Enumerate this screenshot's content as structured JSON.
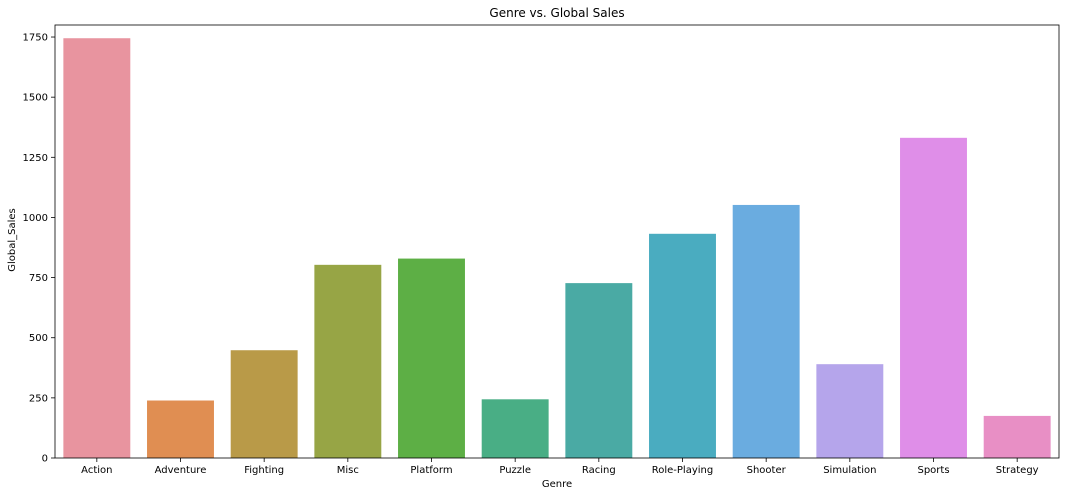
{
  "chart_data": {
    "type": "bar",
    "title": "Genre vs. Global Sales",
    "xlabel": "Genre",
    "ylabel": "Global_Sales",
    "categories": [
      "Action",
      "Adventure",
      "Fighting",
      "Misc",
      "Platform",
      "Puzzle",
      "Racing",
      "Role-Playing",
      "Shooter",
      "Simulation",
      "Sports",
      "Strategy"
    ],
    "values": [
      1745,
      239,
      448,
      803,
      829,
      244,
      727,
      932,
      1052,
      390,
      1331,
      175
    ],
    "colors": [
      "#e8949f",
      "#e08e52",
      "#b99a48",
      "#97a545",
      "#5daf45",
      "#49ae85",
      "#4aaaa4",
      "#4aacc0",
      "#6aace0",
      "#b5a5eb",
      "#df8ee8",
      "#e88fc5"
    ],
    "ylim": [
      0,
      1800
    ],
    "yticks": [
      0,
      250,
      500,
      750,
      1000,
      1250,
      1500,
      1750
    ],
    "ytick_labels": [
      "0",
      "250",
      "500",
      "750",
      "1000",
      "1250",
      "1500",
      "1750"
    ],
    "grid": false,
    "legend": "none"
  }
}
